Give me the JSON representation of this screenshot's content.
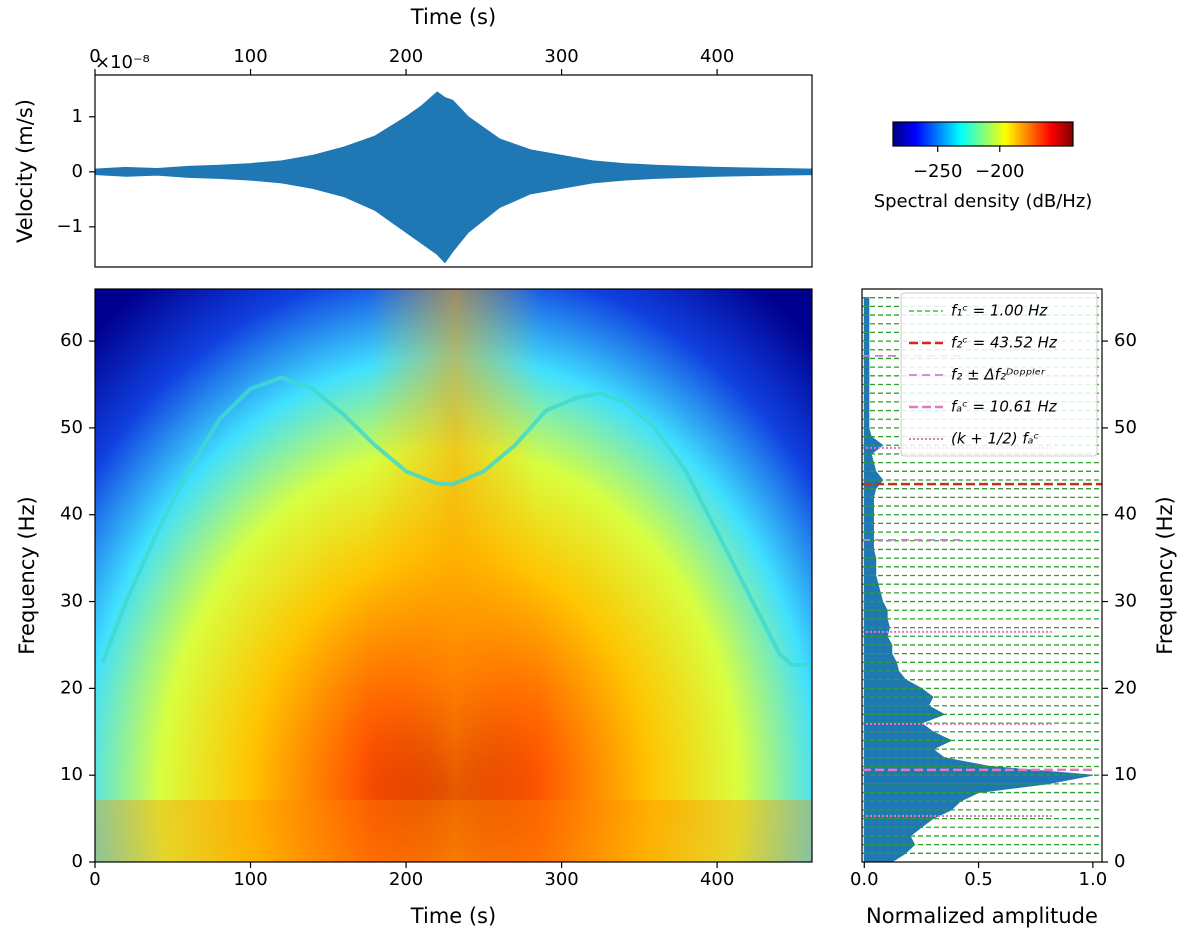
{
  "chart_data": [
    {
      "type": "line",
      "x_label": "Time (s)",
      "y_label": "Velocity (m/s)",
      "y_offset_label": "×10⁻⁸",
      "xlim": [
        0,
        461
      ],
      "xticks": [
        0,
        100,
        200,
        300,
        400
      ],
      "ylim": [
        -1.73,
        1.76
      ],
      "yticks": [
        {
          "value": -1,
          "label": "−1"
        },
        0,
        1
      ],
      "x": [
        0,
        20,
        40,
        60,
        80,
        100,
        120,
        140,
        160,
        180,
        200,
        210,
        220,
        225,
        230,
        240,
        260,
        280,
        300,
        320,
        340,
        360,
        380,
        400,
        420,
        440,
        461
      ],
      "series": [
        {
          "color": "#1f77b4",
          "values": [
            0.05,
            0.08,
            0.06,
            0.1,
            0.12,
            0.15,
            0.2,
            0.3,
            0.45,
            0.65,
            1.0,
            1.2,
            1.45,
            1.35,
            1.3,
            1.0,
            0.6,
            0.4,
            0.3,
            0.2,
            0.15,
            0.12,
            0.1,
            0.08,
            0.07,
            0.06,
            0.05
          ]
        },
        {
          "color": "#1f77b4",
          "values": [
            -0.05,
            -0.08,
            -0.06,
            -0.1,
            -0.12,
            -0.15,
            -0.2,
            -0.3,
            -0.45,
            -0.7,
            -1.1,
            -1.3,
            -1.5,
            -1.65,
            -1.45,
            -1.1,
            -0.65,
            -0.4,
            -0.3,
            -0.2,
            -0.15,
            -0.12,
            -0.1,
            -0.08,
            -0.07,
            -0.06,
            -0.05
          ]
        }
      ]
    },
    {
      "type": "colorbar",
      "label": "Spectral density (dB/Hz)",
      "clim": [
        -286,
        -141
      ],
      "ticks": [
        {
          "value": -250,
          "label": "−250"
        },
        {
          "value": -200,
          "label": "−200"
        }
      ],
      "colors": [
        "#00007f",
        "#0000ff",
        "#007fff",
        "#00ffff",
        "#7fff7f",
        "#ffff00",
        "#ff7f00",
        "#ff0000",
        "#7f0000"
      ]
    },
    {
      "type": "heatmap",
      "x_label": "Time (s)",
      "y_label": "Frequency (Hz)",
      "xlim": [
        0,
        461
      ],
      "xticks": [
        0,
        100,
        200,
        300,
        400
      ],
      "ylim": [
        0,
        66
      ],
      "yticks": [
        0,
        10,
        20,
        30,
        40,
        50,
        60
      ],
      "x": [
        5,
        20,
        40,
        60,
        80,
        100,
        120,
        140,
        160,
        180,
        200,
        220,
        230,
        250,
        270,
        290,
        310,
        325,
        340,
        360,
        380,
        400,
        420,
        440,
        448,
        460
      ],
      "values": [
        23,
        30,
        38,
        45,
        51,
        54.5,
        55.8,
        54.5,
        51.5,
        48,
        45,
        43.6,
        43.5,
        45,
        48,
        52,
        53.5,
        54,
        53,
        50,
        45,
        38,
        31,
        24,
        22.7,
        22.7
      ],
      "color": "#3fd9d0"
    },
    {
      "type": "area",
      "x_label": "Normalized amplitude",
      "y_label": "Frequency (Hz)",
      "xlim": [
        -0.01,
        1.04
      ],
      "xticks": [
        {
          "value": 0,
          "label": "0.0"
        },
        {
          "value": 0.5,
          "label": "0.5"
        },
        {
          "value": 1,
          "label": "1.0"
        }
      ],
      "ylim": [
        0,
        66
      ],
      "yticks": [
        0,
        10,
        20,
        30,
        40,
        50,
        60
      ],
      "frequencies": [
        0,
        1,
        2,
        3,
        4,
        5,
        6,
        7,
        8,
        9,
        10,
        11,
        12,
        13,
        14,
        15,
        16,
        17,
        18,
        19,
        20,
        21,
        22,
        23,
        24,
        25,
        26,
        27,
        28,
        29,
        30,
        31,
        32,
        33,
        34,
        35,
        36,
        37,
        38,
        39,
        40,
        41,
        42,
        43,
        44,
        45,
        46,
        47,
        48,
        49,
        50,
        51,
        52,
        53,
        54,
        55,
        56,
        57,
        58,
        59,
        60,
        61,
        62,
        63,
        64,
        65
      ],
      "values": [
        0.12,
        0.18,
        0.22,
        0.2,
        0.25,
        0.3,
        0.38,
        0.42,
        0.5,
        0.8,
        1.0,
        0.55,
        0.35,
        0.3,
        0.38,
        0.3,
        0.25,
        0.35,
        0.28,
        0.3,
        0.25,
        0.18,
        0.15,
        0.14,
        0.12,
        0.12,
        0.1,
        0.11,
        0.1,
        0.1,
        0.08,
        0.07,
        0.06,
        0.05,
        0.05,
        0.05,
        0.04,
        0.04,
        0.04,
        0.04,
        0.04,
        0.04,
        0.04,
        0.05,
        0.08,
        0.05,
        0.04,
        0.03,
        0.08,
        0.03,
        0.02,
        0.02,
        0.02,
        0.02,
        0.02,
        0.02,
        0.02,
        0.02,
        0.02,
        0.02,
        0.02,
        0.02,
        0.02,
        0.02,
        0.02,
        0.02
      ],
      "color": "#1f77b4",
      "legend": "upper right",
      "lines": [
        {
          "name": "f₁ᶜ = 1.00 Hz",
          "color": "#2ca02c",
          "dash": "5 3",
          "width": 1.3,
          "values": [
            1,
            2,
            3,
            4,
            5,
            6,
            7,
            8,
            9,
            10,
            11,
            12,
            13,
            14,
            15,
            16,
            17,
            18,
            19,
            20,
            21,
            22,
            23,
            24,
            25,
            26,
            27,
            28,
            29,
            30,
            31,
            32,
            33,
            34,
            35,
            36,
            37,
            38,
            39,
            40,
            41,
            42,
            43,
            44,
            45,
            46,
            47,
            48,
            49,
            50,
            51,
            52,
            53,
            54,
            55,
            56,
            57,
            58,
            59,
            60,
            61,
            62,
            63,
            64,
            65
          ],
          "x_end": 1.04
        },
        {
          "name": "f₂ᶜ = 43.52 Hz",
          "color": "#d62728",
          "dash": "9 4",
          "width": 2.5,
          "values": [
            43.52
          ],
          "x_end": 1.04
        },
        {
          "name": "f₂ ± Δf₂ᴰᵒᵖᵖˡᵉʳ",
          "color": "#c685c8",
          "dash": "8 5",
          "width": 1.8,
          "values": [
            37.1,
            58.3
          ],
          "x_end": 0.42
        },
        {
          "name": "fₐᶜ = 10.61 Hz",
          "color": "#e377c2",
          "dash": "9 4",
          "width": 2.5,
          "values": [
            10.61
          ],
          "x_end": 1.0
        },
        {
          "name": "(k + 1/2) fₐᶜ",
          "color": "#e377c2",
          "dash": "2 2",
          "width": 2,
          "values": [
            5.3,
            15.9,
            26.5,
            47.7
          ],
          "x_end": 0.82
        }
      ]
    }
  ]
}
